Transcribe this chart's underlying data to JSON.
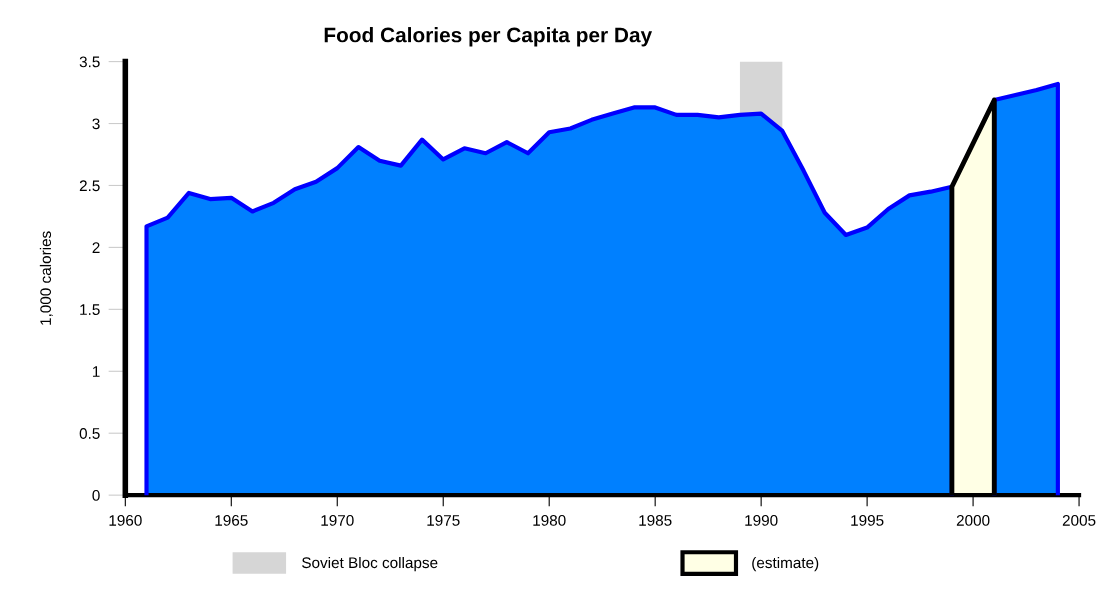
{
  "chart_data": {
    "type": "area",
    "title": "Food Calories per Capita per Day",
    "ylabel": "1,000 calories",
    "x": [
      1961,
      1962,
      1963,
      1964,
      1965,
      1966,
      1967,
      1968,
      1969,
      1970,
      1971,
      1972,
      1973,
      1974,
      1975,
      1976,
      1977,
      1978,
      1979,
      1980,
      1981,
      1982,
      1983,
      1984,
      1985,
      1986,
      1987,
      1988,
      1989,
      1990,
      1991,
      1992,
      1993,
      1994,
      1995,
      1996,
      1997,
      1998,
      1999,
      2000,
      2001,
      2002,
      2003,
      2004
    ],
    "series": [
      {
        "color": "#0080ff",
        "values": [
          2.17,
          2.24,
          2.44,
          2.39,
          2.4,
          2.29,
          2.36,
          2.47,
          2.53,
          2.64,
          2.81,
          2.7,
          2.66,
          2.87,
          2.71,
          2.8,
          2.76,
          2.85,
          2.76,
          2.93,
          2.96,
          3.03,
          3.08,
          3.13,
          3.13,
          3.07,
          3.07,
          3.05,
          3.07,
          3.08,
          2.94,
          2.62,
          2.28,
          2.1,
          2.16,
          2.31,
          2.42,
          2.45,
          2.49,
          null,
          3.19,
          3.23,
          3.27,
          3.32
        ]
      },
      {
        "name": "(estimate)",
        "color": "#ffffe5",
        "x": [
          1999,
          2001
        ],
        "values": [
          2.49,
          3.19
        ]
      }
    ],
    "bands": [
      {
        "axis": "x",
        "from": 1989,
        "to": 1991,
        "label": "Soviet Bloc collapse",
        "color": "#d6d6d6"
      }
    ],
    "xlim": [
      1960,
      2005
    ],
    "xticks": [
      1960,
      1965,
      1970,
      1975,
      1980,
      1985,
      1990,
      1995,
      2000,
      2005
    ],
    "ylim": [
      0,
      3.5
    ],
    "yticks": [
      0,
      0.5,
      1,
      1.5,
      2,
      2.5,
      3,
      3.5
    ],
    "legend": "bottom",
    "grid": false
  }
}
